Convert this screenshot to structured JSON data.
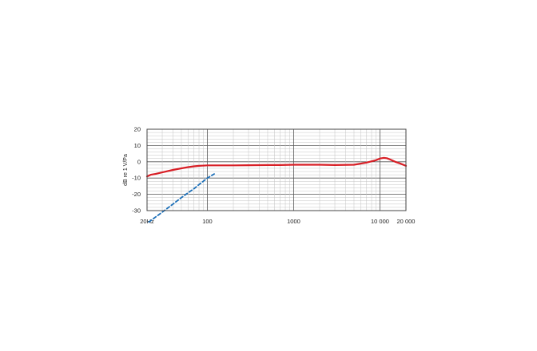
{
  "chart_data": {
    "type": "line",
    "xscale": "log",
    "xlim": [
      20,
      20000
    ],
    "ylim": [
      -30,
      20
    ],
    "ylabel": "dB re 1 V/Pa",
    "xticks": [
      {
        "value": 20,
        "label": "20Hz"
      },
      {
        "value": 100,
        "label": "100"
      },
      {
        "value": 1000,
        "label": "1000"
      },
      {
        "value": 10000,
        "label": "10 000"
      },
      {
        "value": 20000,
        "label": "20 000"
      }
    ],
    "yticks": [
      {
        "value": 20,
        "label": "20"
      },
      {
        "value": 10,
        "label": "10"
      },
      {
        "value": 0,
        "label": "0"
      },
      {
        "value": -10,
        "label": "-10"
      },
      {
        "value": -20,
        "label": "-20"
      },
      {
        "value": -30,
        "label": "-30"
      }
    ],
    "grid": true,
    "series": [
      {
        "style": "solid",
        "color": "#d81f26",
        "x": [
          20,
          22,
          25,
          30,
          40,
          50,
          60,
          70,
          80,
          100,
          150,
          200,
          300,
          500,
          700,
          1000,
          2000,
          3000,
          5000,
          7000,
          9000,
          10000,
          11000,
          12000,
          13000,
          15000,
          17000,
          20000
        ],
        "y": [
          -9,
          -8,
          -7.5,
          -6.5,
          -5,
          -4,
          -3.3,
          -2.8,
          -2.5,
          -2.2,
          -2.2,
          -2.2,
          -2.1,
          -2,
          -2,
          -1.8,
          -1.8,
          -2,
          -1.8,
          -0.5,
          1,
          2,
          2.4,
          2.2,
          1.5,
          0,
          -1,
          -2.5
        ]
      },
      {
        "style": "dashed",
        "color": "#1c6fb8",
        "x": [
          21,
          25,
          30,
          40,
          50,
          60,
          70,
          80,
          100,
          120
        ],
        "y": [
          -37,
          -34,
          -31,
          -26,
          -22,
          -19,
          -16.5,
          -14,
          -10,
          -7.5
        ]
      }
    ]
  }
}
